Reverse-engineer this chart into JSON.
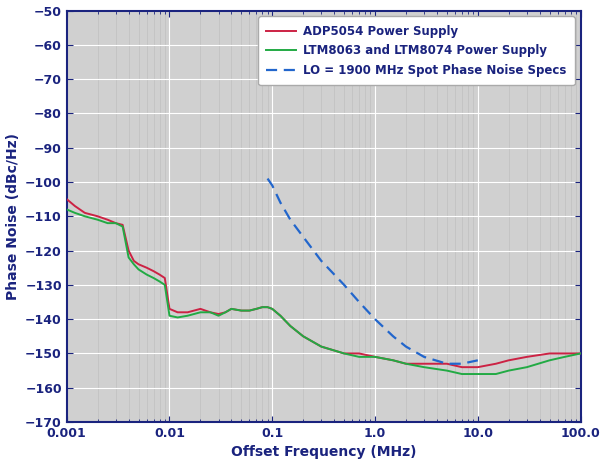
{
  "xlim": [
    0.001,
    100.0
  ],
  "ylim": [
    -170,
    -50
  ],
  "yticks": [
    -170,
    -160,
    -150,
    -140,
    -130,
    -120,
    -110,
    -100,
    -90,
    -80,
    -70,
    -60,
    -50
  ],
  "xlabel": "Offset Frequency (MHz)",
  "ylabel": "Phase Noise (dBc/Hz)",
  "bg_color": "#d8d8d8",
  "plot_bg_color": "#d0d0d0",
  "grid_major_color": "#ffffff",
  "grid_minor_color": "#bbbbbb",
  "outer_bg": "#ffffff",
  "label_color": "#1a237e",
  "tick_color": "#1a237e",
  "spine_color": "#1a237e",
  "adp_color": "#cc2244",
  "ltm_color": "#22aa44",
  "spec_color": "#2266cc",
  "legend_adp": "ADP5054 Power Supply",
  "legend_ltm": "LTM8063 and LTM8074 Power Supply",
  "legend_spec": "LO = 1900 MHz Spot Phase Noise Specs",
  "adp_x": [
    0.001,
    0.0012,
    0.0015,
    0.002,
    0.0025,
    0.003,
    0.0035,
    0.004,
    0.0045,
    0.005,
    0.006,
    0.007,
    0.008,
    0.009,
    0.01,
    0.012,
    0.015,
    0.02,
    0.025,
    0.03,
    0.035,
    0.04,
    0.05,
    0.06,
    0.07,
    0.08,
    0.09,
    0.1,
    0.12,
    0.15,
    0.2,
    0.3,
    0.5,
    0.7,
    1.0,
    1.5,
    2.0,
    3.0,
    5.0,
    7.0,
    10.0,
    15.0,
    20.0,
    30.0,
    50.0,
    70.0,
    100.0
  ],
  "adp_y": [
    -105,
    -107,
    -109,
    -110,
    -111,
    -112,
    -112.5,
    -120,
    -123,
    -124,
    -125,
    -126,
    -127,
    -128,
    -137,
    -138,
    -138,
    -137,
    -138,
    -138.5,
    -138,
    -137,
    -137.5,
    -137.5,
    -137,
    -136.5,
    -136.5,
    -137,
    -139,
    -142,
    -145,
    -148,
    -150,
    -150,
    -151,
    -152,
    -153,
    -153,
    -153,
    -154,
    -154,
    -153,
    -152,
    -151,
    -150,
    -150,
    -150
  ],
  "ltm_x": [
    0.001,
    0.0012,
    0.0015,
    0.002,
    0.0025,
    0.003,
    0.0035,
    0.004,
    0.0045,
    0.005,
    0.006,
    0.007,
    0.008,
    0.009,
    0.01,
    0.012,
    0.015,
    0.02,
    0.025,
    0.03,
    0.035,
    0.04,
    0.05,
    0.06,
    0.07,
    0.08,
    0.09,
    0.1,
    0.12,
    0.15,
    0.2,
    0.3,
    0.5,
    0.7,
    1.0,
    1.5,
    2.0,
    3.0,
    5.0,
    7.0,
    10.0,
    15.0,
    20.0,
    30.0,
    50.0,
    70.0,
    100.0
  ],
  "ltm_y": [
    -108,
    -109,
    -110,
    -111,
    -112,
    -112,
    -113,
    -122,
    -124,
    -125.5,
    -127,
    -128,
    -129,
    -130,
    -139,
    -139.5,
    -139,
    -138,
    -138,
    -139,
    -138,
    -137,
    -137.5,
    -137.5,
    -137,
    -136.5,
    -136.5,
    -137,
    -139,
    -142,
    -145,
    -148,
    -150,
    -151,
    -151,
    -152,
    -153,
    -154,
    -155,
    -156,
    -156,
    -156,
    -155,
    -154,
    -152,
    -151,
    -150
  ],
  "spec_x": [
    0.09,
    0.1,
    0.12,
    0.15,
    0.2,
    0.3,
    0.5,
    0.7,
    1.0,
    1.5,
    2.0,
    3.0,
    5.0,
    7.0,
    10.0
  ],
  "spec_y": [
    -99,
    -101,
    -106,
    -111,
    -116,
    -123,
    -130,
    -135,
    -140,
    -145,
    -148,
    -151,
    -153,
    -153,
    -152
  ],
  "figsize": [
    6.06,
    4.65
  ],
  "dpi": 100
}
